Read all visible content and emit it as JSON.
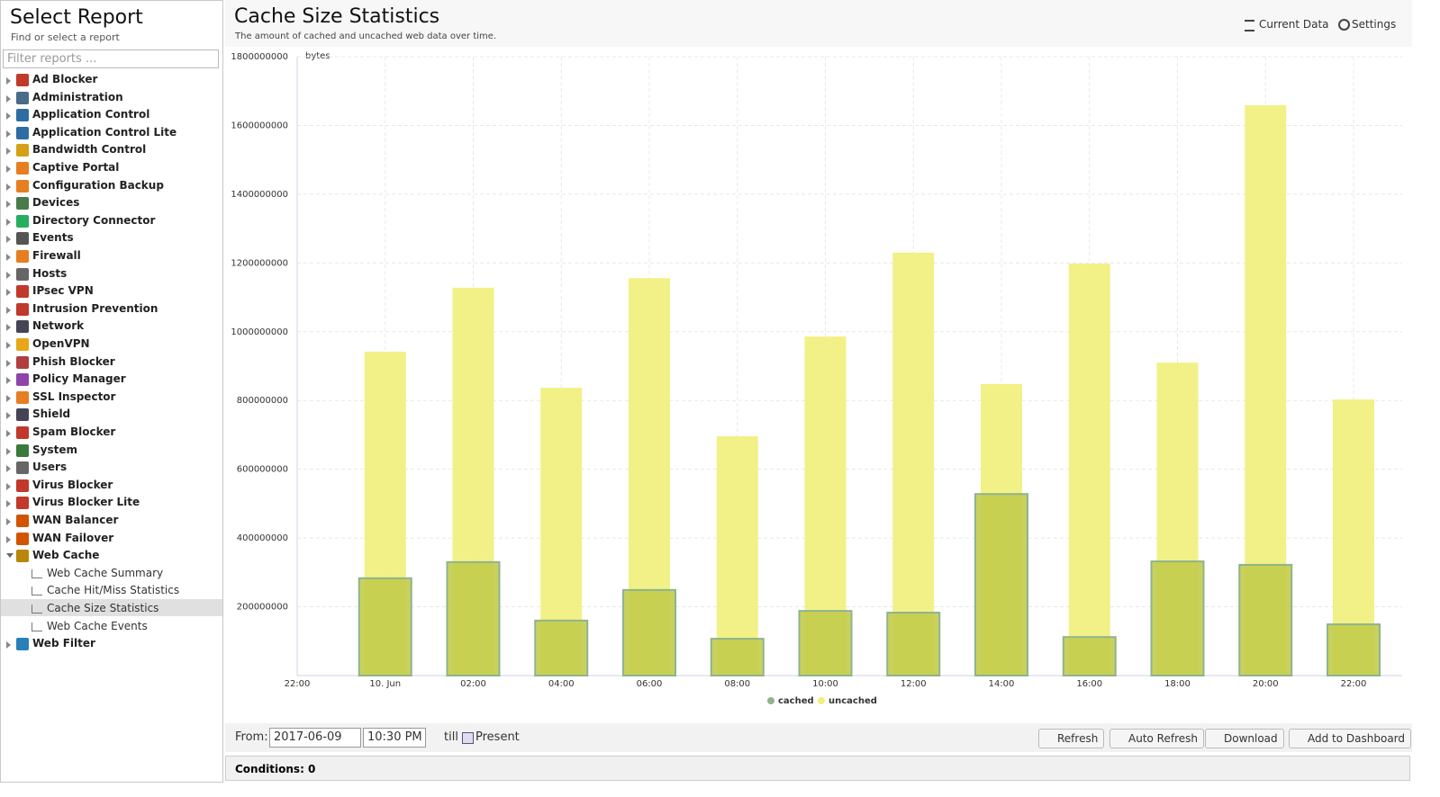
{
  "sidebar": {
    "title": "Select Report",
    "subtitle": "Find or select a report",
    "filter_placeholder": "Filter reports ...",
    "items": [
      {
        "label": "Ad Blocker"
      },
      {
        "label": "Administration"
      },
      {
        "label": "Application Control"
      },
      {
        "label": "Application Control Lite"
      },
      {
        "label": "Bandwidth Control"
      },
      {
        "label": "Captive Portal"
      },
      {
        "label": "Configuration Backup"
      },
      {
        "label": "Devices"
      },
      {
        "label": "Directory Connector"
      },
      {
        "label": "Events"
      },
      {
        "label": "Firewall"
      },
      {
        "label": "Hosts"
      },
      {
        "label": "IPsec VPN"
      },
      {
        "label": "Intrusion Prevention"
      },
      {
        "label": "Network"
      },
      {
        "label": "OpenVPN"
      },
      {
        "label": "Phish Blocker"
      },
      {
        "label": "Policy Manager"
      },
      {
        "label": "SSL Inspector"
      },
      {
        "label": "Shield"
      },
      {
        "label": "Spam Blocker"
      },
      {
        "label": "System"
      },
      {
        "label": "Users"
      },
      {
        "label": "Virus Blocker"
      },
      {
        "label": "Virus Blocker Lite"
      },
      {
        "label": "WAN Balancer"
      },
      {
        "label": "WAN Failover"
      },
      {
        "label": "Web Cache",
        "children": [
          "Web Cache Summary",
          "Cache Hit/Miss Statistics",
          "Cache Size Statistics",
          "Web Cache Events"
        ]
      },
      {
        "label": "Web Filter"
      }
    ]
  },
  "header": {
    "title": "Cache Size Statistics",
    "subtitle": "The amount of cached and uncached web data over time.",
    "actions": [
      "Current Data",
      "Settings"
    ]
  },
  "chart_data": {
    "type": "bar",
    "y_label": "bytes",
    "categories": [
      "22:00",
      "10. Jun",
      "02:00",
      "04:00",
      "06:00",
      "08:00",
      "10:00",
      "12:00",
      "14:00",
      "16:00",
      "18:00",
      "20:00",
      "22:00"
    ],
    "series": [
      {
        "name": "cached",
        "color": "#c3cc4c",
        "legend_color": "#8fb38f",
        "values": [
          null,
          283000000,
          330000000,
          160000000,
          249000000,
          107000000,
          188000000,
          183000000,
          528000000,
          112000000,
          332000000,
          322000000,
          149000000
        ]
      },
      {
        "name": "uncached",
        "color": "#f0f07a",
        "legend_color": "#f0f07a",
        "values": [
          null,
          942000000,
          1128000000,
          837000000,
          1156000000,
          696000000,
          986000000,
          1230000000,
          848000000,
          1198000000,
          910000000,
          1659000000,
          803000000
        ]
      }
    ],
    "ylim": [
      0,
      1800000000
    ],
    "yticks": [
      200000000,
      400000000,
      600000000,
      800000000,
      1000000000,
      1200000000,
      1400000000,
      1600000000,
      1800000000
    ],
    "grid": true
  },
  "toolbar": {
    "from_label": "From:",
    "date": "2017-06-09",
    "time": "10:30 PM",
    "till_label": "till",
    "present_label": "Present",
    "buttons": [
      "Refresh",
      "Auto Refresh",
      "Download",
      "Add to Dashboard"
    ]
  },
  "conditions": "Conditions: 0"
}
